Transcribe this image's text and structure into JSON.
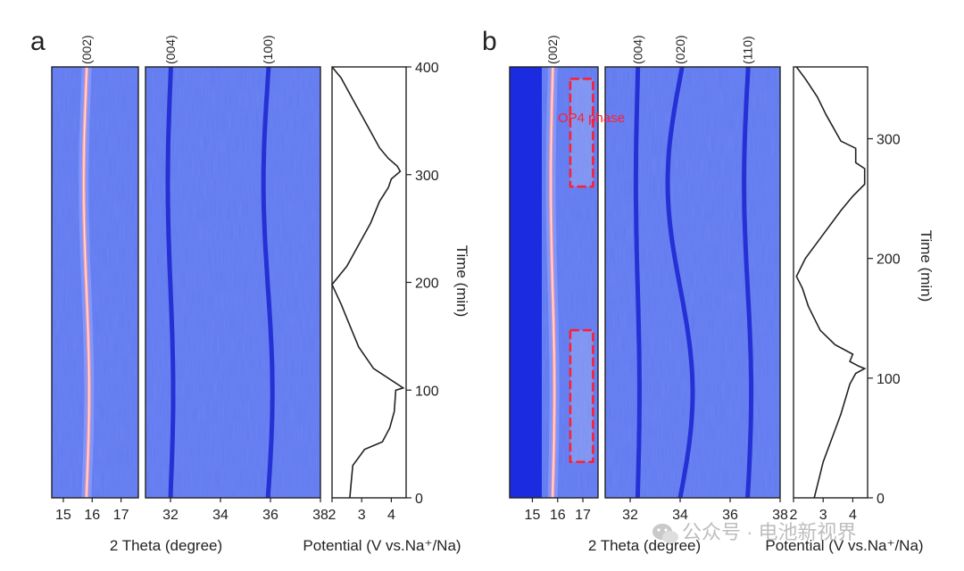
{
  "panel_labels": {
    "a": "a",
    "b": "b"
  },
  "colors": {
    "map_base": "#5f78ee",
    "map_peak": "#1a22d0",
    "map_hot": "#ff9a9a",
    "box": "#ff1e2e",
    "line": "#222222"
  },
  "watermark": {
    "text": "公众号 · 电池新视界",
    "icon": "wechat-icon"
  },
  "chart_data": [
    {
      "type": "heatmap",
      "panel": "a",
      "xlabel": "2 Theta (degree)",
      "subplots": [
        {
          "xlim": [
            14.6,
            17.6
          ],
          "x_ticks": [
            15,
            16,
            17
          ],
          "peaks": [
            {
              "label": "(002)",
              "position": 15.8,
              "intense": true
            }
          ]
        },
        {
          "xlim": [
            31.0,
            38.0
          ],
          "x_ticks": [
            32,
            34,
            36,
            38
          ],
          "peaks": [
            {
              "label": "(004)",
              "position": 32.0
            },
            {
              "label": "(100)",
              "position": 35.9
            }
          ]
        }
      ]
    },
    {
      "type": "line",
      "panel": "a",
      "xlabel": "Potential (V vs.Na⁺/Na)",
      "ylabel": "Time (min)",
      "xlim": [
        2.0,
        4.5
      ],
      "ylim": [
        0,
        400
      ],
      "x_ticks": [
        2,
        3,
        4
      ],
      "y_ticks": [
        0,
        100,
        200,
        300,
        400
      ],
      "points": [
        [
          2.6,
          0
        ],
        [
          2.7,
          30
        ],
        [
          3.1,
          45
        ],
        [
          3.7,
          52
        ],
        [
          3.95,
          65
        ],
        [
          4.1,
          80
        ],
        [
          4.15,
          100
        ],
        [
          4.4,
          102
        ],
        [
          3.4,
          120
        ],
        [
          2.9,
          140
        ],
        [
          2.6,
          160
        ],
        [
          2.3,
          180
        ],
        [
          2.0,
          198
        ],
        [
          2.5,
          215
        ],
        [
          2.9,
          235
        ],
        [
          3.3,
          255
        ],
        [
          3.6,
          275
        ],
        [
          3.9,
          288
        ],
        [
          4.0,
          296
        ],
        [
          4.3,
          303
        ],
        [
          4.2,
          308
        ],
        [
          3.9,
          315
        ],
        [
          3.6,
          325
        ],
        [
          3.3,
          340
        ],
        [
          3.0,
          355
        ],
        [
          2.7,
          370
        ],
        [
          2.3,
          390
        ],
        [
          2.0,
          402
        ]
      ]
    },
    {
      "type": "heatmap",
      "panel": "b",
      "xlabel": "2 Theta (degree)",
      "annotation": "OP4 phase",
      "subplots": [
        {
          "xlim": [
            14.1,
            17.6
          ],
          "x_ticks": [
            15,
            16,
            17
          ],
          "peaks": [
            {
              "label": "(002)",
              "position": 15.8,
              "intense": true
            }
          ]
        },
        {
          "xlim": [
            31.0,
            38.0
          ],
          "x_ticks": [
            32,
            34,
            36,
            38
          ],
          "peaks": [
            {
              "label": "(004)",
              "position": 32.3
            },
            {
              "label": "(020)",
              "position": 34.0
            },
            {
              "label": "(110)",
              "position": 36.7
            }
          ]
        }
      ],
      "highlight_boxes": [
        {
          "x": [
            16.5,
            17.4
          ],
          "y": [
            30,
            140
          ]
        },
        {
          "x": [
            16.5,
            17.4
          ],
          "y": [
            260,
            350
          ]
        }
      ]
    },
    {
      "type": "line",
      "panel": "b",
      "xlabel": "Potential (V vs.Na⁺/Na)",
      "ylabel": "Time (min)",
      "xlim": [
        2.0,
        4.5
      ],
      "ylim": [
        0,
        360
      ],
      "x_ticks": [
        2,
        3,
        4
      ],
      "y_ticks": [
        0,
        100,
        200,
        300
      ],
      "points": [
        [
          2.7,
          0
        ],
        [
          2.8,
          10
        ],
        [
          3.0,
          30
        ],
        [
          3.3,
          50
        ],
        [
          3.6,
          70
        ],
        [
          3.9,
          95
        ],
        [
          4.1,
          104
        ],
        [
          4.4,
          108
        ],
        [
          4.2,
          110
        ],
        [
          3.9,
          114
        ],
        [
          4.0,
          120
        ],
        [
          3.4,
          128
        ],
        [
          2.9,
          140
        ],
        [
          2.5,
          160
        ],
        [
          2.3,
          175
        ],
        [
          2.1,
          185
        ],
        [
          2.4,
          200
        ],
        [
          3.0,
          220
        ],
        [
          3.6,
          240
        ],
        [
          4.0,
          252
        ],
        [
          4.4,
          262
        ],
        [
          4.4,
          275
        ],
        [
          4.1,
          280
        ],
        [
          4.1,
          292
        ],
        [
          3.6,
          298
        ],
        [
          3.1,
          320
        ],
        [
          2.8,
          335
        ],
        [
          2.4,
          350
        ],
        [
          2.1,
          360
        ]
      ]
    }
  ]
}
